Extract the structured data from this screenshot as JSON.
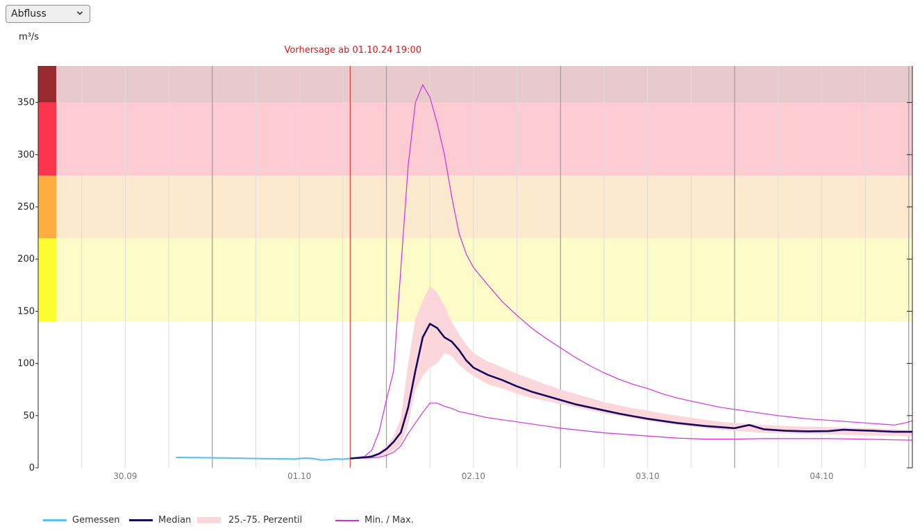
{
  "controls": {
    "parameter_select": {
      "value": "Abfluss"
    }
  },
  "chart_data": {
    "type": "line",
    "unit_label": "m³/s",
    "forecast_label": "Vorhersage ab 01.10.24 19:00",
    "ylim": [
      0,
      385
    ],
    "y_ticks": [
      0,
      50,
      100,
      150,
      200,
      250,
      300,
      350
    ],
    "x_range_hours": [
      0,
      120.5
    ],
    "x_day_labels": [
      {
        "label": "30.09",
        "hour": 12
      },
      {
        "label": "01.10",
        "hour": 36
      },
      {
        "label": "02.10",
        "hour": 60
      },
      {
        "label": "03.10",
        "hour": 84
      },
      {
        "label": "04.10",
        "hour": 108
      }
    ],
    "x_major_gridlines_hours": [
      24,
      48,
      72,
      96,
      120
    ],
    "x_minor_gridline_step_hours": 6,
    "forecast_start_hour": 43,
    "warning_bands": [
      {
        "from": 140,
        "to": 220,
        "fill": "#fdfbc7",
        "bar": "#fdfc32"
      },
      {
        "from": 220,
        "to": 280,
        "fill": "#fde9cd",
        "bar": "#fdae3f"
      },
      {
        "from": 280,
        "to": 350,
        "fill": "#fdcbd2",
        "bar": "#fc354f"
      },
      {
        "from": 350,
        "to": 385,
        "fill": "#e8c9cc",
        "bar": "#98292f"
      }
    ],
    "series": [
      {
        "name": "Gemessen",
        "type": "line",
        "color": "#5ebfee",
        "points": [
          [
            19,
            10
          ],
          [
            22,
            9.8
          ],
          [
            25,
            9.5
          ],
          [
            28,
            9.2
          ],
          [
            31,
            8.8
          ],
          [
            34,
            8.6
          ],
          [
            35.5,
            8.4
          ],
          [
            36,
            8.9
          ],
          [
            37,
            9.3
          ],
          [
            38,
            8.8
          ],
          [
            39,
            7.5
          ],
          [
            40,
            7.8
          ],
          [
            41,
            8.6
          ],
          [
            42,
            8.2
          ],
          [
            43,
            9
          ]
        ]
      },
      {
        "name": "Median",
        "type": "line",
        "color": "#15075c",
        "points": [
          [
            43,
            9
          ],
          [
            45,
            10
          ],
          [
            46,
            11
          ],
          [
            47,
            13.5
          ],
          [
            48,
            18
          ],
          [
            49,
            25
          ],
          [
            50,
            34
          ],
          [
            51,
            58
          ],
          [
            52,
            93
          ],
          [
            53,
            125
          ],
          [
            54,
            138
          ],
          [
            55,
            134
          ],
          [
            56,
            125
          ],
          [
            57,
            121
          ],
          [
            58,
            113
          ],
          [
            59,
            103
          ],
          [
            60,
            96
          ],
          [
            62,
            89
          ],
          [
            64,
            84
          ],
          [
            66,
            78
          ],
          [
            68,
            73
          ],
          [
            70,
            69
          ],
          [
            72,
            65
          ],
          [
            74,
            61
          ],
          [
            76,
            58
          ],
          [
            78,
            55
          ],
          [
            80,
            52
          ],
          [
            82,
            49.5
          ],
          [
            84,
            47
          ],
          [
            86,
            45
          ],
          [
            88,
            43
          ],
          [
            90,
            41.5
          ],
          [
            92,
            40
          ],
          [
            94,
            39
          ],
          [
            96,
            38
          ],
          [
            98,
            41
          ],
          [
            100,
            37
          ],
          [
            103,
            35.5
          ],
          [
            106,
            35
          ],
          [
            109,
            35.2
          ],
          [
            111,
            36.5
          ],
          [
            113,
            36
          ],
          [
            115,
            35.5
          ],
          [
            118,
            34.5
          ],
          [
            120.5,
            34.5
          ]
        ]
      },
      {
        "name": "25.-75. Perzentil",
        "type": "band",
        "color": "#fbd6da",
        "upper": [
          [
            43,
            9
          ],
          [
            45,
            10
          ],
          [
            46,
            12
          ],
          [
            47,
            15
          ],
          [
            48,
            21
          ],
          [
            49,
            30
          ],
          [
            50,
            48
          ],
          [
            51,
            100
          ],
          [
            52,
            143
          ],
          [
            53,
            160
          ],
          [
            54,
            174
          ],
          [
            55,
            168
          ],
          [
            56,
            155
          ],
          [
            57,
            140
          ],
          [
            58,
            128
          ],
          [
            59,
            118
          ],
          [
            60,
            110
          ],
          [
            62,
            102
          ],
          [
            64,
            96
          ],
          [
            66,
            90
          ],
          [
            68,
            85
          ],
          [
            70,
            80
          ],
          [
            72,
            75
          ],
          [
            74,
            71
          ],
          [
            76,
            67
          ],
          [
            78,
            63
          ],
          [
            80,
            60
          ],
          [
            82,
            57
          ],
          [
            84,
            55
          ],
          [
            86,
            52
          ],
          [
            88,
            50
          ],
          [
            90,
            48
          ],
          [
            92,
            46
          ],
          [
            94,
            44
          ],
          [
            96,
            43
          ],
          [
            98,
            42
          ],
          [
            100,
            41
          ],
          [
            103,
            40
          ],
          [
            106,
            39.5
          ],
          [
            109,
            39
          ],
          [
            112,
            38.5
          ],
          [
            115,
            38
          ],
          [
            118,
            37
          ],
          [
            120.5,
            36
          ]
        ],
        "lower": [
          [
            43,
            9
          ],
          [
            45,
            9.5
          ],
          [
            46,
            10
          ],
          [
            47,
            11
          ],
          [
            48,
            13
          ],
          [
            49,
            17
          ],
          [
            50,
            23
          ],
          [
            51,
            42
          ],
          [
            52,
            75
          ],
          [
            53,
            88
          ],
          [
            54,
            96
          ],
          [
            55,
            100
          ],
          [
            56,
            110
          ],
          [
            57,
            107
          ],
          [
            58,
            99
          ],
          [
            59,
            93
          ],
          [
            60,
            88
          ],
          [
            62,
            80
          ],
          [
            64,
            76
          ],
          [
            66,
            71
          ],
          [
            68,
            67
          ],
          [
            70,
            64
          ],
          [
            72,
            61
          ],
          [
            74,
            58
          ],
          [
            76,
            55
          ],
          [
            78,
            52
          ],
          [
            80,
            50
          ],
          [
            82,
            47.5
          ],
          [
            84,
            45
          ],
          [
            86,
            43
          ],
          [
            88,
            41
          ],
          [
            90,
            39.5
          ],
          [
            92,
            38
          ],
          [
            94,
            36.5
          ],
          [
            96,
            35.5
          ],
          [
            98,
            34.5
          ],
          [
            100,
            33.5
          ],
          [
            103,
            33
          ],
          [
            106,
            32.5
          ],
          [
            109,
            32
          ],
          [
            112,
            31.5
          ],
          [
            115,
            31
          ],
          [
            118,
            30.5
          ],
          [
            120.5,
            30
          ]
        ]
      },
      {
        "name": "Min. / Max.",
        "type": "line_pair",
        "color": "#d42ed9",
        "upper": [
          [
            43,
            9
          ],
          [
            45,
            11
          ],
          [
            46,
            17
          ],
          [
            47,
            35
          ],
          [
            48,
            65
          ],
          [
            49,
            93
          ],
          [
            50,
            192
          ],
          [
            51,
            290
          ],
          [
            52,
            350
          ],
          [
            53,
            367
          ],
          [
            54,
            355
          ],
          [
            55,
            330
          ],
          [
            56,
            300
          ],
          [
            57,
            260
          ],
          [
            58,
            225
          ],
          [
            59,
            205
          ],
          [
            60,
            192
          ],
          [
            62,
            175
          ],
          [
            64,
            159
          ],
          [
            66,
            146
          ],
          [
            68,
            134
          ],
          [
            70,
            124
          ],
          [
            72,
            115
          ],
          [
            74,
            106
          ],
          [
            76,
            98
          ],
          [
            78,
            91
          ],
          [
            80,
            85
          ],
          [
            82,
            80
          ],
          [
            84,
            76
          ],
          [
            86,
            71
          ],
          [
            88,
            67
          ],
          [
            90,
            64
          ],
          [
            92,
            61
          ],
          [
            94,
            58
          ],
          [
            96,
            56
          ],
          [
            98,
            54
          ],
          [
            100,
            52
          ],
          [
            102,
            50
          ],
          [
            104,
            48.5
          ],
          [
            106,
            47
          ],
          [
            108,
            46
          ],
          [
            110,
            45
          ],
          [
            112,
            44
          ],
          [
            114,
            43
          ],
          [
            116,
            42
          ],
          [
            118,
            41
          ],
          [
            119.5,
            43
          ],
          [
            120.5,
            45
          ]
        ],
        "lower": [
          [
            43,
            9
          ],
          [
            46,
            9.6
          ],
          [
            47,
            10.2
          ],
          [
            48,
            12
          ],
          [
            49,
            15
          ],
          [
            50,
            21
          ],
          [
            51,
            33
          ],
          [
            52,
            43
          ],
          [
            53,
            53
          ],
          [
            54,
            62
          ],
          [
            55,
            62
          ],
          [
            56,
            59
          ],
          [
            57,
            57
          ],
          [
            58,
            54
          ],
          [
            60,
            51
          ],
          [
            62,
            48
          ],
          [
            64,
            46
          ],
          [
            66,
            44
          ],
          [
            68,
            42
          ],
          [
            70,
            40
          ],
          [
            72,
            38
          ],
          [
            74,
            36.5
          ],
          [
            76,
            35
          ],
          [
            78,
            33.5
          ],
          [
            80,
            32.5
          ],
          [
            82,
            31.5
          ],
          [
            84,
            30.5
          ],
          [
            86,
            29.5
          ],
          [
            88,
            28.5
          ],
          [
            90,
            28
          ],
          [
            92,
            27.5
          ],
          [
            94,
            27.5
          ],
          [
            96,
            27.5
          ],
          [
            98,
            27.8
          ],
          [
            100,
            28
          ],
          [
            103,
            28
          ],
          [
            106,
            28
          ],
          [
            109,
            28
          ],
          [
            112,
            27.7
          ],
          [
            115,
            27.3
          ],
          [
            118,
            26.8
          ],
          [
            120.5,
            26.5
          ]
        ]
      }
    ],
    "legend": [
      {
        "label": "Gemessen",
        "kind": "line",
        "color": "#5ebfee"
      },
      {
        "label": "Median",
        "kind": "line",
        "color": "#15075c"
      },
      {
        "label": "25.-75. Perzentil",
        "kind": "band",
        "color": "#fbd6da"
      },
      {
        "label": "Min. / Max.",
        "kind": "thin-line",
        "color": "#d42ed9"
      }
    ]
  }
}
